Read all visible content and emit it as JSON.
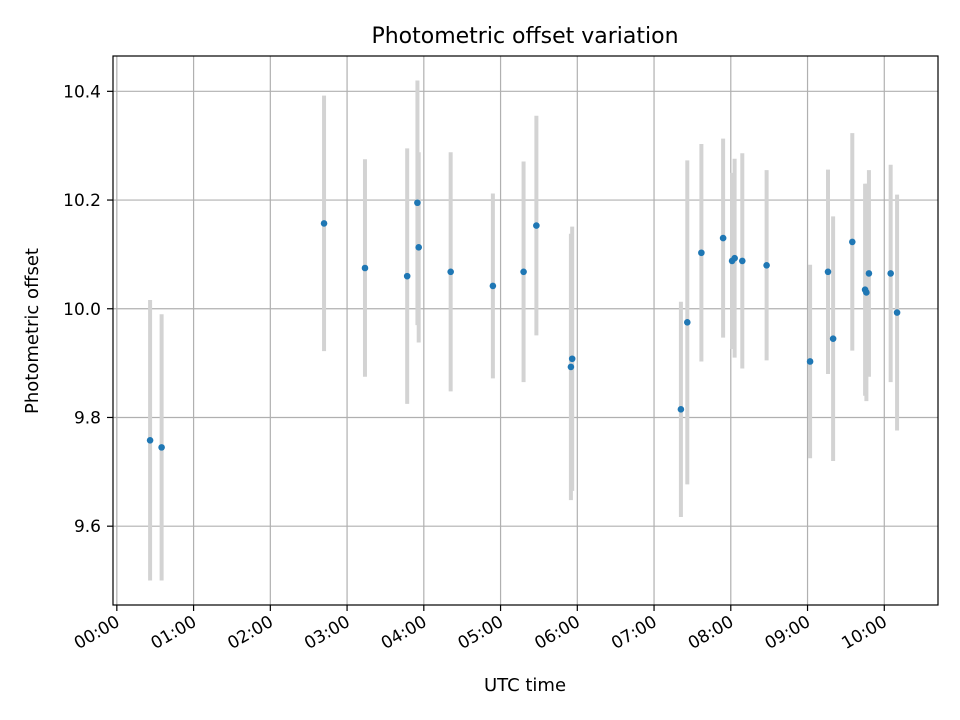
{
  "chart_data": {
    "type": "scatter",
    "title": "Photometric offset variation",
    "xlabel": "UTC time",
    "ylabel": "Photometric offset",
    "grid": true,
    "xlim": [
      "23:57",
      "10:42"
    ],
    "ylim": [
      9.455,
      10.465
    ],
    "xticks": [
      "00:00",
      "01:00",
      "02:00",
      "03:00",
      "04:00",
      "05:00",
      "06:00",
      "07:00",
      "08:00",
      "09:00",
      "10:00"
    ],
    "yticks": [
      9.6,
      9.8,
      10.0,
      10.2,
      10.4
    ],
    "ytick_labels": [
      "9.6",
      "9.8",
      "10.0",
      "10.2",
      "10.4"
    ],
    "colors": {
      "point": "#1f77b4",
      "errorbar": "#d3d3d3",
      "grid": "#b0b0b0"
    },
    "points": [
      {
        "x": "00:26",
        "y": 9.758,
        "err": 0.258
      },
      {
        "x": "00:35",
        "y": 9.745,
        "err": 0.245
      },
      {
        "x": "02:42",
        "y": 10.157,
        "err": 0.235
      },
      {
        "x": "03:14",
        "y": 10.075,
        "err": 0.2
      },
      {
        "x": "03:47",
        "y": 10.06,
        "err": 0.235
      },
      {
        "x": "03:55",
        "y": 10.195,
        "err": 0.225
      },
      {
        "x": "03:56",
        "y": 10.113,
        "err": 0.175
      },
      {
        "x": "04:21",
        "y": 10.068,
        "err": 0.22
      },
      {
        "x": "04:54",
        "y": 10.042,
        "err": 0.17
      },
      {
        "x": "05:18",
        "y": 10.068,
        "err": 0.203
      },
      {
        "x": "05:28",
        "y": 10.153,
        "err": 0.202
      },
      {
        "x": "05:55",
        "y": 9.893,
        "err": 0.245
      },
      {
        "x": "05:56",
        "y": 9.908,
        "err": 0.243
      },
      {
        "x": "07:21",
        "y": 9.815,
        "err": 0.198
      },
      {
        "x": "07:26",
        "y": 9.975,
        "err": 0.298
      },
      {
        "x": "07:37",
        "y": 10.103,
        "err": 0.2
      },
      {
        "x": "07:54",
        "y": 10.13,
        "err": 0.183
      },
      {
        "x": "08:01",
        "y": 10.088,
        "err": 0.162
      },
      {
        "x": "08:03",
        "y": 10.093,
        "err": 0.183
      },
      {
        "x": "08:09",
        "y": 10.088,
        "err": 0.198
      },
      {
        "x": "08:28",
        "y": 10.08,
        "err": 0.175
      },
      {
        "x": "09:02",
        "y": 9.903,
        "err": 0.178
      },
      {
        "x": "09:16",
        "y": 10.068,
        "err": 0.188
      },
      {
        "x": "09:20",
        "y": 9.945,
        "err": 0.225
      },
      {
        "x": "09:35",
        "y": 10.123,
        "err": 0.2
      },
      {
        "x": "09:45",
        "y": 10.035,
        "err": 0.195
      },
      {
        "x": "09:46",
        "y": 10.03,
        "err": 0.2
      },
      {
        "x": "09:48",
        "y": 10.065,
        "err": 0.19
      },
      {
        "x": "10:05",
        "y": 10.065,
        "err": 0.2
      },
      {
        "x": "10:10",
        "y": 9.993,
        "err": 0.217
      }
    ]
  }
}
